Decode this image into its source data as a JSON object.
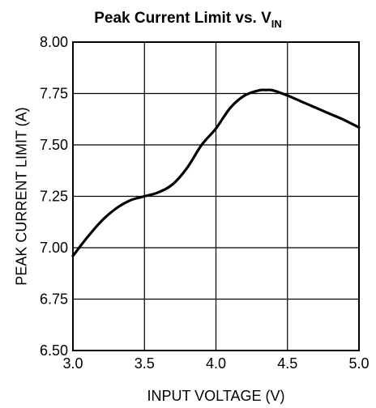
{
  "chart_data": {
    "type": "line",
    "title": "Peak Current Limit vs. V",
    "title_subscript": "IN",
    "xlabel": "INPUT VOLTAGE (V)",
    "ylabel": "PEAK CURRENT LIMIT (A)",
    "xlim": [
      3.0,
      5.0
    ],
    "ylim": [
      6.5,
      8.0
    ],
    "x_ticks": [
      "3.0",
      "3.5",
      "4.0",
      "4.5",
      "5.0"
    ],
    "y_ticks": [
      "6.50",
      "6.75",
      "7.00",
      "7.25",
      "7.50",
      "7.75",
      "8.00"
    ],
    "grid": true,
    "series": [
      {
        "x": [
          3.0,
          3.1,
          3.2,
          3.3,
          3.4,
          3.5,
          3.6,
          3.7,
          3.8,
          3.9,
          4.0,
          4.1,
          4.2,
          4.3,
          4.35,
          4.4,
          4.5,
          4.6,
          4.7,
          4.8,
          4.9,
          5.0
        ],
        "values": [
          6.96,
          7.05,
          7.13,
          7.19,
          7.23,
          7.25,
          7.27,
          7.31,
          7.39,
          7.5,
          7.58,
          7.68,
          7.74,
          7.765,
          7.767,
          7.765,
          7.74,
          7.71,
          7.68,
          7.65,
          7.62,
          7.585
        ]
      }
    ]
  }
}
